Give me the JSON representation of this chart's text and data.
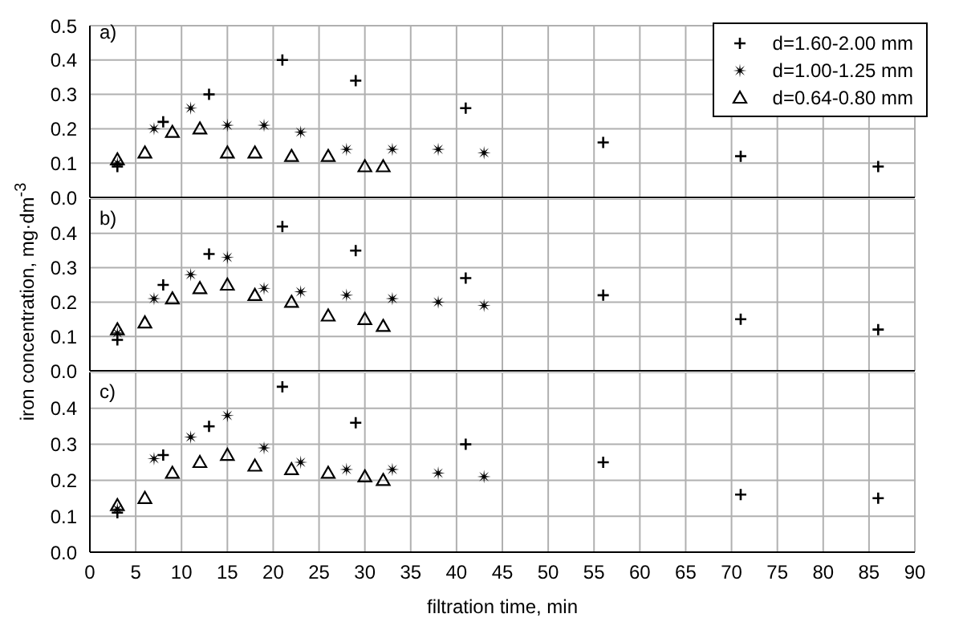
{
  "chart_data": [
    {
      "type": "scatter",
      "annotations": [
        "a)"
      ],
      "legend": "top right",
      "grid": true,
      "tick_labels": "y",
      "xlim": [
        0,
        90
      ],
      "xticks": [
        0,
        5,
        10,
        15,
        20,
        25,
        30,
        35,
        40,
        45,
        50,
        55,
        60,
        65,
        70,
        75,
        80,
        85,
        90
      ],
      "ylim": [
        0,
        0.5
      ],
      "yticks": [
        {
          "value": 0,
          "label": "0.0"
        },
        {
          "value": 0.1,
          "label": "0.1"
        },
        {
          "value": 0.2,
          "label": "0.2"
        },
        {
          "value": 0.3,
          "label": "0.3"
        },
        {
          "value": 0.4,
          "label": "0.4"
        },
        {
          "value": 0.5,
          "label": "0.5"
        }
      ],
      "series": [
        {
          "name": "d=1.60-2.00 mm",
          "color": "#000000",
          "marker": "cross",
          "x": [
            3,
            8,
            13,
            21,
            29,
            41,
            56,
            71,
            86
          ],
          "values": [
            0.09,
            0.22,
            0.3,
            0.4,
            0.34,
            0.26,
            0.16,
            0.12,
            0.09
          ]
        },
        {
          "name": "d=1.00-1.25 mm",
          "color": "#000000",
          "marker": "star",
          "x": [
            3,
            7,
            11,
            15,
            19,
            23,
            28,
            33,
            38,
            43
          ],
          "values": [
            0.1,
            0.2,
            0.26,
            0.21,
            0.21,
            0.19,
            0.14,
            0.14,
            0.14,
            0.13
          ]
        },
        {
          "name": "d=0.64-0.80 mm",
          "color": "#000000",
          "marker": "triangle",
          "x": [
            3,
            6,
            9,
            12,
            15,
            18,
            22,
            26,
            30,
            32
          ],
          "values": [
            0.11,
            0.13,
            0.19,
            0.2,
            0.13,
            0.13,
            0.12,
            0.12,
            0.09,
            0.09
          ]
        }
      ]
    },
    {
      "type": "scatter",
      "annotations": [
        "b)"
      ],
      "ylabel": "iron concentration, mg·dm$^{-3}$",
      "grid": true,
      "tick_labels": "y",
      "xlim": [
        0,
        90
      ],
      "xticks": [
        0,
        5,
        10,
        15,
        20,
        25,
        30,
        35,
        40,
        45,
        50,
        55,
        60,
        65,
        70,
        75,
        80,
        85,
        90
      ],
      "ylim": [
        0,
        0.5
      ],
      "yticks": [
        {
          "value": 0,
          "label": "0.0"
        },
        {
          "value": 0.1,
          "label": "0.1"
        },
        {
          "value": 0.2,
          "label": "0.2"
        },
        {
          "value": 0.3,
          "label": "0.3"
        },
        {
          "value": 0.4,
          "label": "0.4"
        },
        {
          "value": 0.5,
          "label": null
        }
      ],
      "series": [
        {
          "color": "#000000",
          "marker": "cross",
          "x": [
            3,
            8,
            13,
            21,
            29,
            41,
            56,
            71,
            86
          ],
          "values": [
            0.09,
            0.25,
            0.34,
            0.42,
            0.35,
            0.27,
            0.22,
            0.15,
            0.12
          ]
        },
        {
          "color": "#000000",
          "marker": "star",
          "x": [
            3,
            7,
            11,
            15,
            19,
            23,
            28,
            33,
            38,
            43
          ],
          "values": [
            0.11,
            0.21,
            0.28,
            0.33,
            0.24,
            0.23,
            0.22,
            0.21,
            0.2,
            0.19
          ]
        },
        {
          "color": "#000000",
          "marker": "triangle",
          "x": [
            3,
            6,
            9,
            12,
            15,
            18,
            22,
            26,
            30,
            32
          ],
          "values": [
            0.12,
            0.14,
            0.21,
            0.24,
            0.25,
            0.22,
            0.2,
            0.16,
            0.15,
            0.13
          ]
        }
      ]
    },
    {
      "type": "scatter",
      "annotations": [
        "c)"
      ],
      "xlabel": "filtration time, min",
      "grid": true,
      "xlim": [
        0,
        90
      ],
      "xticks": [
        0,
        5,
        10,
        15,
        20,
        25,
        30,
        35,
        40,
        45,
        50,
        55,
        60,
        65,
        70,
        75,
        80,
        85,
        90
      ],
      "ylim": [
        0,
        0.5
      ],
      "yticks": [
        {
          "value": 0,
          "label": "0.0"
        },
        {
          "value": 0.1,
          "label": "0.1"
        },
        {
          "value": 0.2,
          "label": "0.2"
        },
        {
          "value": 0.3,
          "label": "0.3"
        },
        {
          "value": 0.4,
          "label": "0.4"
        },
        {
          "value": 0.5,
          "label": null
        }
      ],
      "series": [
        {
          "color": "#000000",
          "marker": "cross",
          "x": [
            3,
            8,
            13,
            21,
            29,
            41,
            56,
            71,
            86
          ],
          "values": [
            0.11,
            0.27,
            0.35,
            0.46,
            0.36,
            0.3,
            0.25,
            0.16,
            0.15
          ]
        },
        {
          "color": "#000000",
          "marker": "star",
          "x": [
            3,
            7,
            11,
            15,
            19,
            23,
            28,
            33,
            38,
            43
          ],
          "values": [
            0.12,
            0.26,
            0.32,
            0.38,
            0.29,
            0.25,
            0.23,
            0.23,
            0.22,
            0.21
          ]
        },
        {
          "color": "#000000",
          "marker": "triangle",
          "x": [
            3,
            6,
            9,
            12,
            15,
            18,
            22,
            26,
            30,
            32
          ],
          "values": [
            0.13,
            0.15,
            0.22,
            0.25,
            0.27,
            0.24,
            0.23,
            0.22,
            0.21,
            0.2
          ]
        }
      ]
    }
  ]
}
